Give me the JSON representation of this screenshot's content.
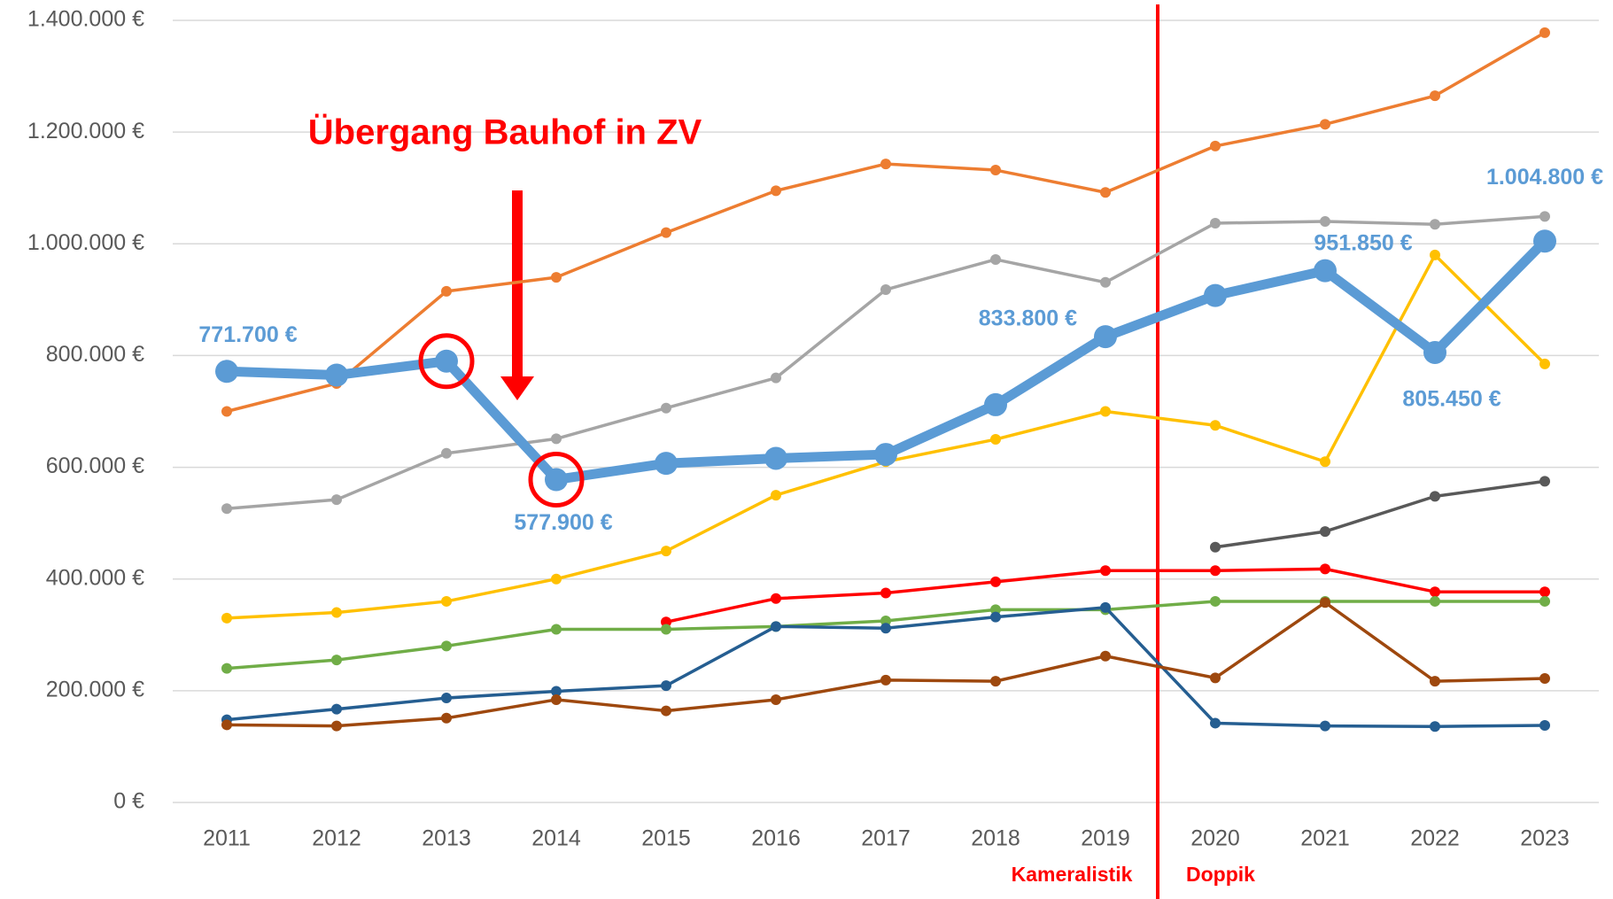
{
  "chart_data": {
    "type": "line",
    "categories": [
      "2011",
      "2012",
      "2013",
      "2014",
      "2015",
      "2016",
      "2017",
      "2018",
      "2019",
      "2020",
      "2021",
      "2022",
      "2023"
    ],
    "ylim": [
      0,
      1400000
    ],
    "yticks": [
      {
        "value": 0,
        "label": "0 €"
      },
      {
        "value": 200000,
        "label": "200.000 €"
      },
      {
        "value": 400000,
        "label": "400.000 €"
      },
      {
        "value": 600000,
        "label": "600.000 €"
      },
      {
        "value": 800000,
        "label": "800.000 €"
      },
      {
        "value": 1000000,
        "label": "1.000.000 €"
      },
      {
        "value": 1200000,
        "label": "1.200.000 €"
      },
      {
        "value": 1400000,
        "label": "1.400.000 €"
      }
    ],
    "grid": true,
    "annotations": [
      "Übergang Bauhof in ZV",
      "Kameralistik",
      "Doppik"
    ],
    "series": [
      {
        "color": "#ed7d31",
        "values": [
          700000,
          750000,
          915000,
          940000,
          1020000,
          1095000,
          1143000,
          1132000,
          1092000,
          1175000,
          1214000,
          1265000,
          1378000
        ]
      },
      {
        "color": "#a5a5a5",
        "values": [
          526000,
          542000,
          625000,
          651000,
          706000,
          760000,
          918000,
          972000,
          931000,
          1037000,
          1040000,
          1035000,
          1049000
        ]
      },
      {
        "color": "#ffc000",
        "values": [
          330000,
          340000,
          360000,
          400000,
          450000,
          550000,
          610000,
          650000,
          700000,
          675000,
          610000,
          980000,
          785000
        ]
      },
      {
        "color": "#595959",
        "values": [
          null,
          null,
          null,
          null,
          null,
          null,
          null,
          null,
          null,
          457000,
          485000,
          548000,
          575000
        ]
      },
      {
        "color": "#ff0000",
        "values": [
          null,
          null,
          null,
          null,
          323000,
          365000,
          375000,
          395000,
          415000,
          415000,
          418000,
          377000,
          377000
        ]
      },
      {
        "color": "#70ad47",
        "values": [
          240000,
          255000,
          280000,
          310000,
          310000,
          315000,
          325000,
          345000,
          345000,
          360000,
          360000,
          360000,
          360000
        ]
      },
      {
        "color": "#255e91",
        "values": [
          148000,
          167000,
          187000,
          199000,
          209000,
          315000,
          312000,
          332000,
          349000,
          142000,
          137000,
          136000,
          138000
        ]
      },
      {
        "color": "#9e480e",
        "values": [
          139000,
          137000,
          151000,
          184000,
          164000,
          184000,
          219000,
          217000,
          262000,
          223000,
          358000,
          217000,
          222000
        ]
      },
      {
        "color": "#5b9bd5",
        "values": [
          771700,
          765000,
          790000,
          577900,
          607000,
          616000,
          623000,
          712000,
          833800,
          907500,
          951850,
          805450,
          1004800
        ],
        "value_labels": [
          "771.700 €",
          null,
          null,
          "577.900 €",
          null,
          null,
          null,
          null,
          "833.800 €",
          null,
          "951.850 €",
          "805.450 €",
          "1.004.800 €"
        ]
      }
    ]
  }
}
